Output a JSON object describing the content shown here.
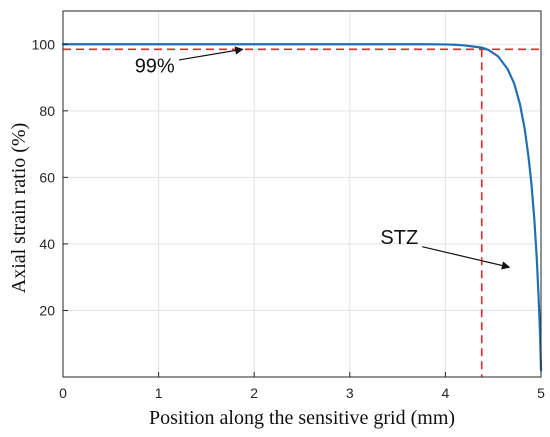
{
  "chart_data": {
    "type": "line",
    "xlabel": "Position along the sensitive grid (mm)",
    "ylabel": "Axial strain ratio (%)",
    "xlim": [
      0,
      5
    ],
    "ylim": [
      0,
      110
    ],
    "xticks": [
      0,
      1,
      2,
      3,
      4,
      5
    ],
    "yticks": [
      20,
      40,
      60,
      80,
      100
    ],
    "grid": true,
    "series": [
      {
        "color": "#1f6fb4",
        "x": [
          0,
          1,
          2,
          3,
          3.8,
          4.0,
          4.1,
          4.2,
          4.3,
          4.38,
          4.45,
          4.55,
          4.65,
          4.72,
          4.78,
          4.83,
          4.87,
          4.9,
          4.93,
          4.955,
          4.975,
          4.99,
          5.0
        ],
        "y": [
          100,
          100,
          100,
          100,
          100,
          99.95,
          99.85,
          99.65,
          99.3,
          99.0,
          98.3,
          96.4,
          92.6,
          88.2,
          82.0,
          74.5,
          66.0,
          58.0,
          47.5,
          36.0,
          24.0,
          13.0,
          2.0
        ]
      }
    ],
    "reference_lines": {
      "color": "#e8262a",
      "horizontal_y": 98.5,
      "vertical_x": 4.38
    },
    "annotations": [
      {
        "text": "99%",
        "text_x": 0.75,
        "text_y": 91.5,
        "arrow_to_x": 1.88,
        "arrow_to_y": 98.5
      },
      {
        "text": "STZ",
        "text_x": 3.32,
        "text_y": 40,
        "arrow_to_x": 4.67,
        "arrow_to_y": 33
      }
    ]
  }
}
